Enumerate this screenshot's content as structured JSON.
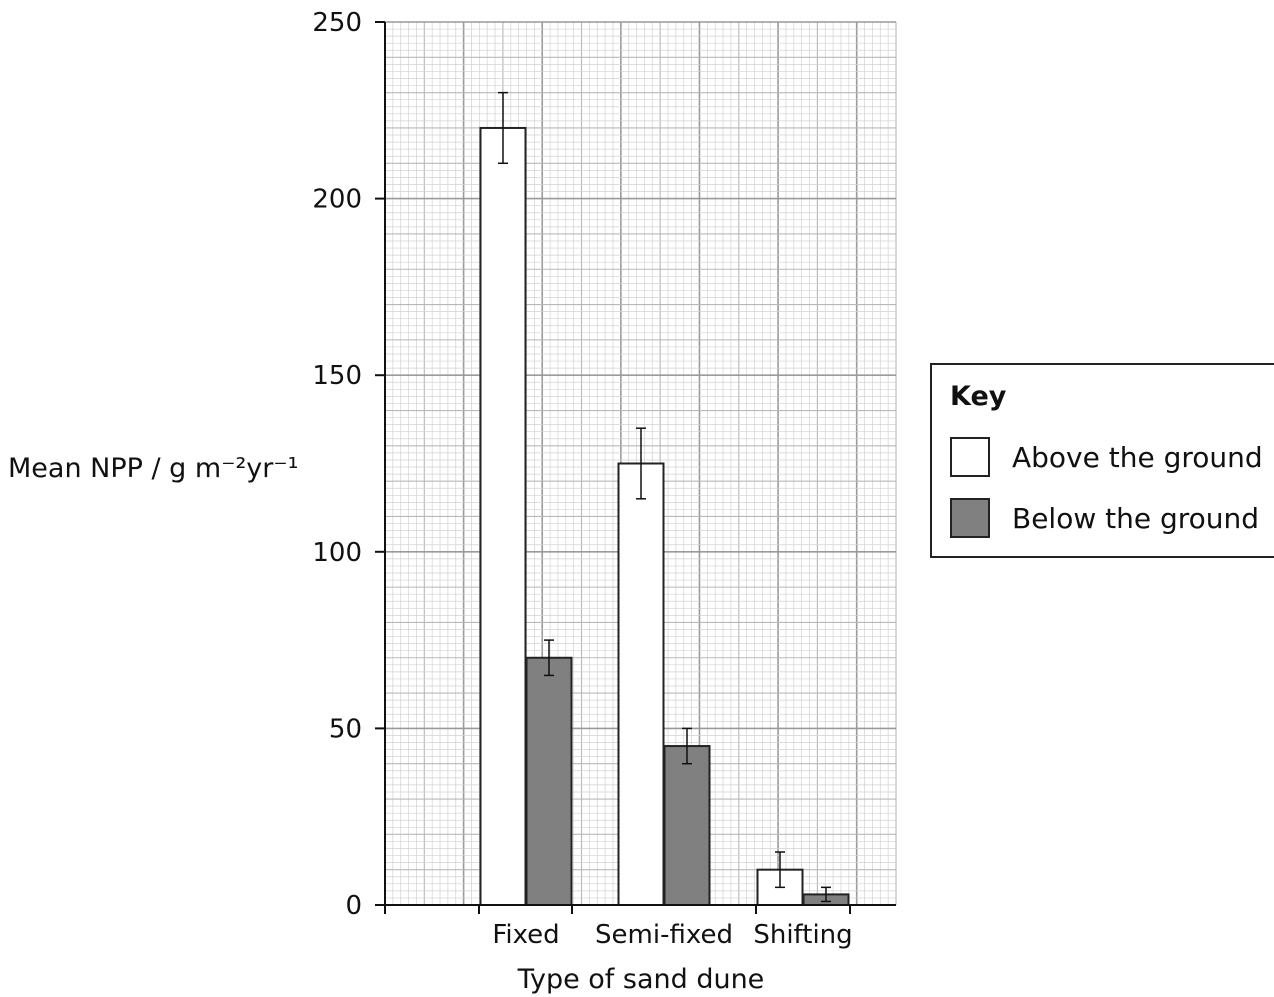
{
  "chart_data": {
    "type": "bar",
    "xlabel": "Type of sand dune",
    "ylabel": "Mean NPP / g m⁻²yr⁻¹",
    "categories": [
      "Fixed",
      "Semi-fixed",
      "Shifting"
    ],
    "ylim": [
      0,
      250
    ],
    "yticks": [
      0,
      50,
      100,
      150,
      200,
      250
    ],
    "grid": true,
    "legend_position": "right",
    "legend_title": "Key",
    "series": [
      {
        "name": "Above the ground",
        "color": "#ffffff",
        "values": [
          220,
          125,
          10
        ],
        "error": [
          10,
          10,
          5
        ]
      },
      {
        "name": "Below the ground",
        "color": "#808080",
        "values": [
          70,
          45,
          3
        ],
        "error": [
          5,
          5,
          2
        ]
      }
    ]
  }
}
